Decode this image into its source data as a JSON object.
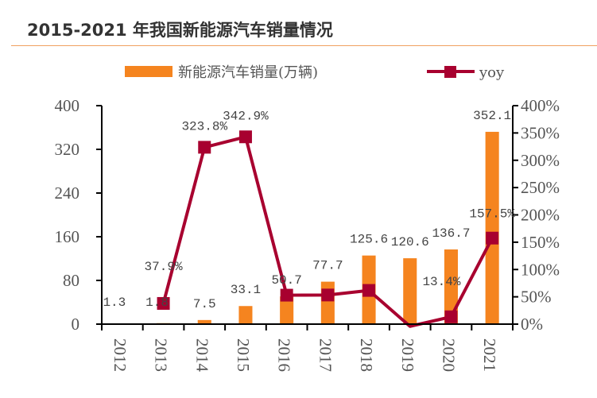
{
  "title": "2015-2021 年我国新能源汽车销量情况",
  "colors": {
    "bar": "#f5841f",
    "line": "#a8002f",
    "axis": "#000000",
    "rule": "#f0a060"
  },
  "chart_data": {
    "type": "bar+line",
    "title": "2015-2021 年我国新能源汽车销量情况",
    "categories": [
      "2012",
      "2013",
      "2014",
      "2015",
      "2016",
      "2017",
      "2018",
      "2019",
      "2020",
      "2021"
    ],
    "series": [
      {
        "name": "新能源汽车销量(万辆)",
        "type": "bar",
        "axis": "left",
        "values": [
          1.3,
          1.8,
          7.5,
          33.1,
          50.7,
          77.7,
          125.6,
          120.6,
          136.7,
          352.1
        ],
        "labels": [
          "1.3",
          "1.8",
          "7.5",
          "33.1",
          "50.7",
          "77.7",
          "125.6",
          "120.6",
          "136.7",
          "352.1"
        ]
      },
      {
        "name": "yoy",
        "type": "line",
        "axis": "right",
        "values": [
          null,
          37.9,
          323.8,
          342.9,
          53.0,
          53.3,
          61.7,
          -4.0,
          13.4,
          157.5
        ],
        "labels": [
          null,
          "37.9%",
          "323.8%",
          "342.9%",
          null,
          null,
          null,
          null,
          "13.4%",
          "157.5%"
        ]
      }
    ],
    "ylim": [
      0,
      400
    ],
    "yticks": [
      "0",
      "80",
      "160",
      "240",
      "320",
      "400"
    ],
    "y2lim": [
      0,
      400
    ],
    "y2ticks": [
      "0%",
      "50%",
      "100%",
      "150%",
      "200%",
      "250%",
      "300%",
      "350%",
      "400%"
    ],
    "legend": "top",
    "grid": false
  }
}
